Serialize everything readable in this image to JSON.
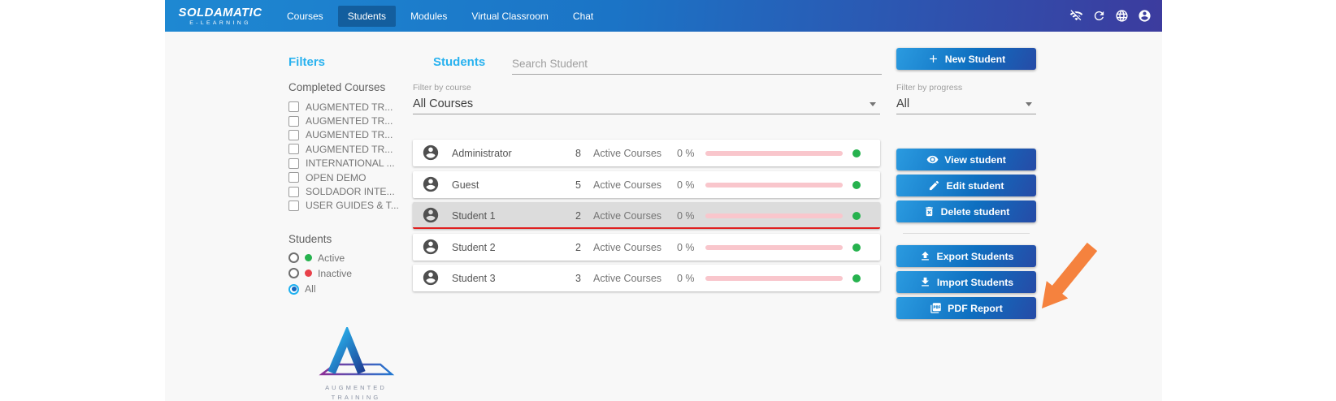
{
  "nav": {
    "brand_title": "SOLDAMATIC",
    "brand_subtitle": "E-LEARNING",
    "items": [
      {
        "label": "Courses",
        "active": false
      },
      {
        "label": "Students",
        "active": true
      },
      {
        "label": "Modules",
        "active": false
      },
      {
        "label": "Virtual Classroom",
        "active": false
      },
      {
        "label": "Chat",
        "active": false
      }
    ],
    "icons": [
      {
        "name": "wifi-off-icon"
      },
      {
        "name": "refresh-icon"
      },
      {
        "name": "globe-icon"
      },
      {
        "name": "account-icon"
      }
    ]
  },
  "filters": {
    "title": "Filters",
    "completed_courses_label": "Completed Courses",
    "completed_courses": [
      "AUGMENTED TR...",
      "AUGMENTED TR...",
      "AUGMENTED TR...",
      "AUGMENTED TR...",
      "INTERNATIONAL ...",
      "OPEN DEMO",
      "SOLDADOR INTE...",
      "USER GUIDES & T..."
    ],
    "students_label": "Students",
    "student_status": [
      {
        "label": "Active",
        "dot_color": "#26b24e",
        "checked": false
      },
      {
        "label": "Inactive",
        "dot_color": "#e8414a",
        "checked": false
      },
      {
        "label": "All",
        "dot_color": "",
        "checked": true
      }
    ]
  },
  "main": {
    "title": "Students",
    "search_placeholder": "Search Student",
    "course_filter_label": "Filter by course",
    "course_filter_value": "All Courses",
    "rows": [
      {
        "name": "Administrator",
        "count": "8",
        "courses_label": "Active Courses",
        "progress": "0 %",
        "selected": false
      },
      {
        "name": "Guest",
        "count": "5",
        "courses_label": "Active Courses",
        "progress": "0 %",
        "selected": false
      },
      {
        "name": "Student 1",
        "count": "2",
        "courses_label": "Active Courses",
        "progress": "0 %",
        "selected": true
      },
      {
        "name": "Student 2",
        "count": "2",
        "courses_label": "Active Courses",
        "progress": "0 %",
        "selected": false
      },
      {
        "name": "Student 3",
        "count": "3",
        "courses_label": "Active Courses",
        "progress": "0 %",
        "selected": false
      }
    ],
    "status_dot_color": "#26b24e",
    "progress_track_color": "#f9c6cc"
  },
  "actions": {
    "new_student_label": "New Student",
    "progress_filter_label": "Filter by progress",
    "progress_filter_value": "All",
    "buttons": [
      {
        "label": "View student",
        "icon": "eye-icon"
      },
      {
        "label": "Edit student",
        "icon": "pencil-icon"
      },
      {
        "label": "Delete student",
        "icon": "trash-icon"
      },
      {
        "label": "Export Students",
        "icon": "upload-icon"
      },
      {
        "label": "Import Students",
        "icon": "download-icon"
      },
      {
        "label": "PDF Report",
        "icon": "pdf-icon"
      }
    ]
  },
  "annotation": {
    "arrow_color": "#f5823e"
  },
  "footer_logo": {
    "line1": "AUGMENTED",
    "line2": "TRAINING"
  },
  "colors": {
    "accent_cyan": "#29b2ef",
    "nav_gradient_start": "#1e88d2",
    "nav_gradient_end": "#3c3b9e",
    "active_tab": "#135e9e",
    "selected_row_bg": "#dcdcdc",
    "selected_row_underline": "#e02020"
  }
}
